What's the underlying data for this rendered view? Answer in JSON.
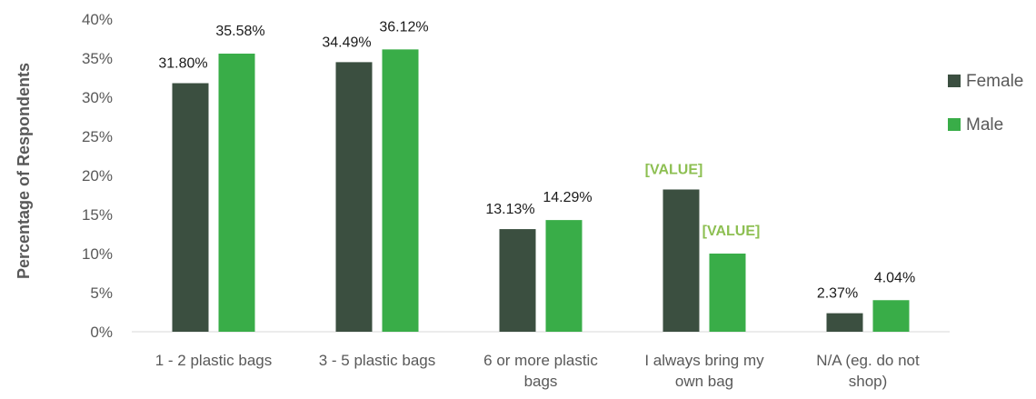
{
  "chart_data": {
    "type": "bar",
    "title": "",
    "xlabel": "",
    "ylabel": "Percentage of Respondents",
    "ylim": [
      0,
      40
    ],
    "y_ticks": [
      "0%",
      "5%",
      "10%",
      "15%",
      "20%",
      "25%",
      "30%",
      "35%",
      "40%"
    ],
    "grid": false,
    "legend_position": "right",
    "categories": [
      [
        "1 - 2 plastic bags"
      ],
      [
        "3 - 5 plastic bags"
      ],
      [
        "6 or more plastic",
        "bags"
      ],
      [
        "I always bring my",
        "own bag"
      ],
      [
        "N/A (eg. do not",
        "shop)"
      ]
    ],
    "series": [
      {
        "name": "Female",
        "color": "#3b4f40",
        "values": [
          31.8,
          34.49,
          13.13,
          18.2,
          2.37
        ],
        "labels": [
          "31.80%",
          "34.49%",
          "13.13%",
          "[VALUE]",
          "2.37%"
        ]
      },
      {
        "name": "Male",
        "color": "#39ad48",
        "values": [
          35.58,
          36.12,
          14.29,
          10.0,
          4.04
        ],
        "labels": [
          "35.58%",
          "36.12%",
          "14.29%",
          "[VALUE]",
          "4.04%"
        ]
      }
    ],
    "placeholder_label_color": "#8dbf52"
  }
}
